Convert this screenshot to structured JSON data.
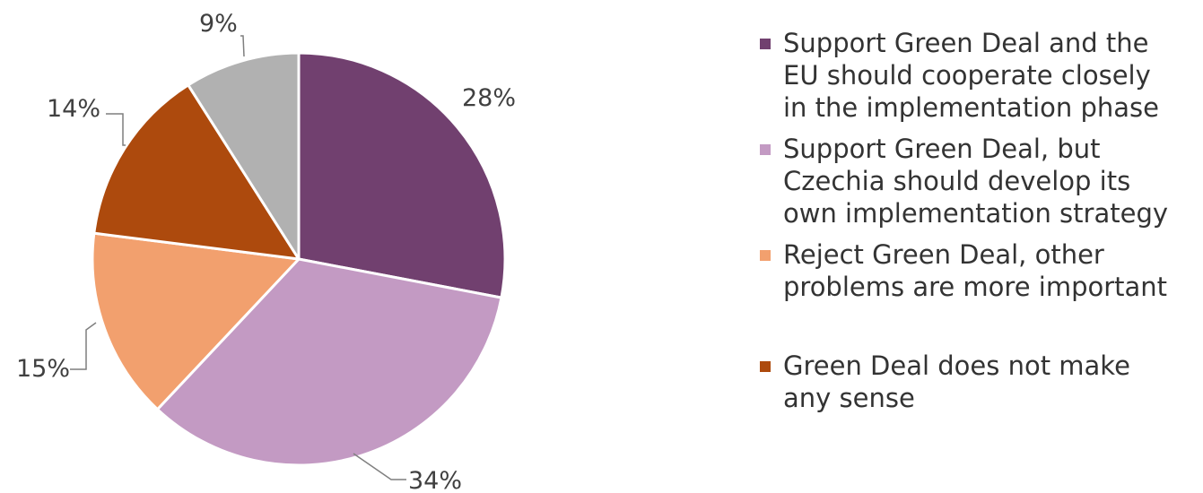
{
  "chart_data": {
    "type": "pie",
    "slices": [
      {
        "label": "Support Green Deal and the\nEU should cooperate closely\nin the implementation phase",
        "value": 28,
        "value_label": "28%",
        "color": "#71406f"
      },
      {
        "label": "Support Green Deal, but\nCzechia should develop its\nown implementation strategy",
        "value": 34,
        "value_label": "34%",
        "color": "#c39ac3"
      },
      {
        "label": "Reject Green Deal, other\nproblems are more important",
        "value": 15,
        "value_label": "15%",
        "color": "#f2a06e"
      },
      {
        "label": "Green Deal does not make\nany sense",
        "value": 14,
        "value_label": "14%",
        "color": "#ad4a0d"
      },
      {
        "label": "",
        "value": 9,
        "value_label": "9%",
        "color": "#b1b1b1"
      }
    ],
    "legend_position": "right"
  }
}
